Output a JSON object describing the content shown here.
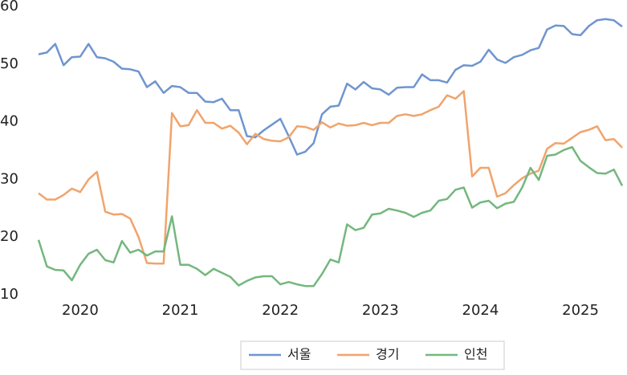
{
  "chart_data": {
    "type": "line",
    "categories": [
      null,
      null,
      null,
      null,
      null,
      "2020",
      null,
      null,
      null,
      null,
      null,
      null,
      null,
      null,
      null,
      null,
      null,
      "2021",
      null,
      null,
      null,
      null,
      null,
      null,
      null,
      null,
      null,
      null,
      null,
      "2022",
      null,
      null,
      null,
      null,
      null,
      null,
      null,
      null,
      null,
      null,
      null,
      "2023",
      null,
      null,
      null,
      null,
      null,
      null,
      null,
      null,
      null,
      null,
      null,
      "2024",
      null,
      null,
      null,
      null,
      null,
      null,
      null,
      null,
      null,
      null,
      null,
      "2025",
      null,
      null,
      null,
      null,
      null
    ],
    "series": [
      {
        "name": "서울",
        "color": "#6f95cf",
        "values": [
          51.7,
          52,
          53.5,
          49.8,
          51.2,
          51.3,
          53.5,
          51.2,
          51,
          50.4,
          49.2,
          49.1,
          48.7,
          46,
          47,
          45,
          46.2,
          46,
          45,
          45,
          43.5,
          43.4,
          44,
          42,
          42,
          37.5,
          37.3,
          38.5,
          39.5,
          40.5,
          37.5,
          34.3,
          34.8,
          36.3,
          41.3,
          42.6,
          42.8,
          46.6,
          45.6,
          46.9,
          45.8,
          45.6,
          44.7,
          45.9,
          46,
          46,
          48.2,
          47.2,
          47.2,
          46.8,
          49,
          49.8,
          49.7,
          50.4,
          52.5,
          50.8,
          50.2,
          51.2,
          51.6,
          52.4,
          52.8,
          56,
          56.7,
          56.6,
          55.2,
          55,
          56.6,
          57.6,
          57.8,
          57.6,
          56.5
        ]
      },
      {
        "name": "경기",
        "color": "#f0a46c",
        "values": [
          27.6,
          26.5,
          26.5,
          27.3,
          28.4,
          27.8,
          30,
          31.3,
          24.4,
          23.9,
          24,
          23.2,
          20,
          15.5,
          15.4,
          15.4,
          41.5,
          39.2,
          39.4,
          42,
          39.8,
          39.8,
          38.8,
          39.3,
          38.1,
          36.1,
          37.9,
          37,
          36.7,
          36.6,
          37.3,
          39.2,
          39.1,
          38.6,
          39.9,
          39,
          39.7,
          39.3,
          39.4,
          39.8,
          39.4,
          39.8,
          39.8,
          41,
          41.3,
          41,
          41.3,
          42,
          42.6,
          44.6,
          44,
          45.3,
          30.5,
          32,
          32,
          27,
          27.6,
          29,
          30.2,
          31,
          31.5,
          35.3,
          36.3,
          36.2,
          37.2,
          38.2,
          38.6,
          39.2,
          36.8,
          37,
          35.5
        ]
      },
      {
        "name": "인천",
        "color": "#74b77e",
        "values": [
          19.5,
          14.9,
          14.3,
          14.2,
          12.5,
          15.2,
          17.1,
          17.8,
          16,
          15.6,
          19.3,
          17.3,
          17.8,
          16.8,
          17.5,
          17.5,
          23.6,
          15.2,
          15.2,
          14.5,
          13.4,
          14.5,
          13.8,
          13.1,
          11.6,
          12.4,
          13,
          13.2,
          13.2,
          11.8,
          12.2,
          11.8,
          11.5,
          11.5,
          13.6,
          16.1,
          15.6,
          22.2,
          21.2,
          21.6,
          23.9,
          24.1,
          24.9,
          24.6,
          24.2,
          23.5,
          24.2,
          24.6,
          26.3,
          26.6,
          28.2,
          28.6,
          25.1,
          26,
          26.3,
          25,
          25.8,
          26.1,
          28.6,
          32,
          29.9,
          34.1,
          34.3,
          35.1,
          35.6,
          33.2,
          32.1,
          31.1,
          31,
          31.7,
          28.9
        ]
      }
    ],
    "ylim": [
      10,
      60
    ],
    "yticks": [
      10,
      20,
      30,
      40,
      50,
      60
    ],
    "legend": "bottom"
  }
}
